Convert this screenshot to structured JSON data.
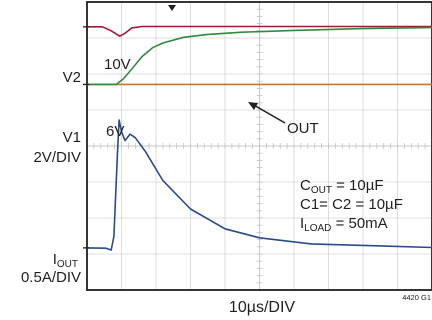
{
  "chart_data": {
    "type": "line",
    "xlabel": "10µs/DIV",
    "footnote": "4420 G1",
    "x_divisions": 10,
    "y_divisions": 8,
    "grid": true,
    "legend_placement": "none",
    "channel_labels": [
      {
        "id": "v2",
        "text": "V2"
      },
      {
        "id": "v1",
        "text": "V1"
      },
      {
        "id": "v1scale",
        "text": "2V/DIV"
      },
      {
        "id": "iout",
        "text": "I",
        "sub": "OUT"
      },
      {
        "id": "ioutscale",
        "text": "0.5A/DIV"
      }
    ],
    "level_labels": [
      {
        "id": "v2level",
        "text": "10V"
      },
      {
        "id": "v1level",
        "text": "6V"
      }
    ],
    "annotation": {
      "text": "OUT",
      "points_to": "v2"
    },
    "conditions": [
      {
        "main": "C",
        "sub": "OUT",
        "rest": " = 10µF"
      },
      {
        "main": "C1= C2 = 10µF",
        "sub": "",
        "rest": ""
      },
      {
        "main": "I",
        "sub": "LOAD",
        "rest": " = 50mA"
      }
    ],
    "series": [
      {
        "id": "v1",
        "color": "#c8742c",
        "points": [
          [
            0,
            5.71
          ],
          [
            10,
            5.71
          ],
          [
            10,
            5.69
          ]
        ]
      },
      {
        "id": "v2",
        "color": "#9e1b36",
        "points": [
          [
            0,
            7.31
          ],
          [
            0.45,
            7.31
          ],
          [
            0.7,
            7.2
          ],
          [
            0.95,
            7.05
          ],
          [
            1.1,
            7.13
          ],
          [
            1.3,
            7.28
          ],
          [
            1.6,
            7.32
          ],
          [
            3,
            7.32
          ],
          [
            6,
            7.32
          ],
          [
            10,
            7.32
          ]
        ]
      },
      {
        "id": "out",
        "color": "#2e8b3e",
        "points": [
          [
            0,
            5.71
          ],
          [
            0.85,
            5.71
          ],
          [
            1.05,
            5.86
          ],
          [
            1.3,
            6.14
          ],
          [
            1.6,
            6.49
          ],
          [
            1.9,
            6.73
          ],
          [
            2.2,
            6.86
          ],
          [
            2.8,
            7.02
          ],
          [
            3.5,
            7.1
          ],
          [
            4.5,
            7.16
          ],
          [
            6,
            7.21
          ],
          [
            8,
            7.26
          ],
          [
            10,
            7.29
          ]
        ]
      },
      {
        "id": "iout",
        "color": "#2a4a8f",
        "points": [
          [
            0,
            1.17
          ],
          [
            0.55,
            1.16
          ],
          [
            0.7,
            1.11
          ],
          [
            0.78,
            1.49
          ],
          [
            0.88,
            3.76
          ],
          [
            0.93,
            4.72
          ],
          [
            1.0,
            4.4
          ],
          [
            1.1,
            4.15
          ],
          [
            1.25,
            4.33
          ],
          [
            1.4,
            4.23
          ],
          [
            1.7,
            3.84
          ],
          [
            2.2,
            3.04
          ],
          [
            3,
            2.25
          ],
          [
            4,
            1.7
          ],
          [
            5,
            1.45
          ],
          [
            6.5,
            1.28
          ],
          [
            8,
            1.24
          ],
          [
            10,
            1.18
          ]
        ]
      }
    ]
  }
}
